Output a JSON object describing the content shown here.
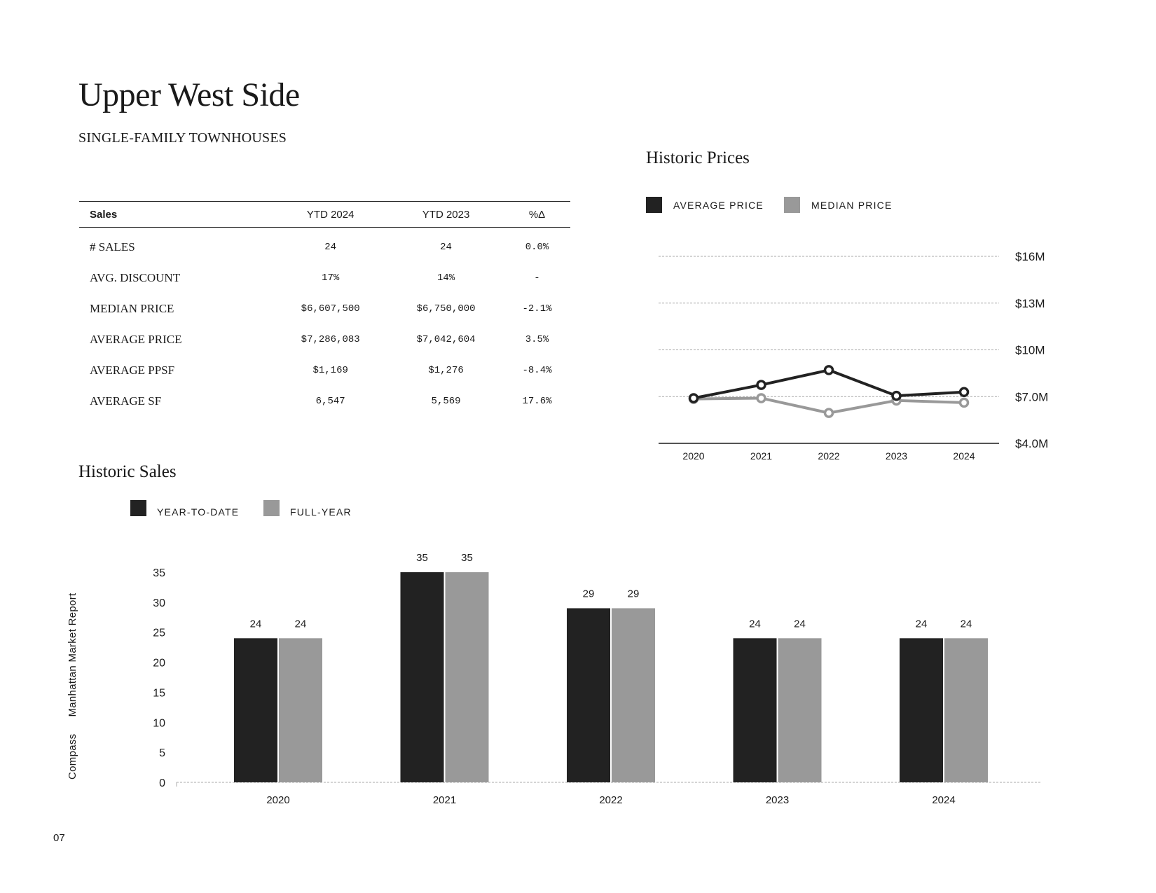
{
  "header": {
    "title": "Upper West Side",
    "subtitle": "SINGLE-FAMILY TOWNHOUSES"
  },
  "sales_table": {
    "columns": [
      "Sales",
      "YTD 2024",
      "YTD 2023",
      "%Δ"
    ],
    "rows": [
      {
        "label": "# SALES",
        "ytd2024": "24",
        "ytd2023": "24",
        "change": "0.0%"
      },
      {
        "label": "AVG. DISCOUNT",
        "ytd2024": "17%",
        "ytd2023": "14%",
        "change": "-"
      },
      {
        "label": "MEDIAN PRICE",
        "ytd2024": "$6,607,500",
        "ytd2023": "$6,750,000",
        "change": "-2.1%"
      },
      {
        "label": "AVERAGE PRICE",
        "ytd2024": "$7,286,083",
        "ytd2023": "$7,042,604",
        "change": "3.5%"
      },
      {
        "label": "AVERAGE PPSF",
        "ytd2024": "$1,169",
        "ytd2023": "$1,276",
        "change": "-8.4%"
      },
      {
        "label": "AVERAGE SF",
        "ytd2024": "6,547",
        "ytd2023": "5,569",
        "change": "17.6%"
      }
    ]
  },
  "colors": {
    "dark": "#222222",
    "gray": "#999999",
    "grid": "#aaaaaa"
  },
  "chart_data": [
    {
      "type": "line",
      "title": "Historic Prices",
      "x": [
        "2020",
        "2021",
        "2022",
        "2023",
        "2024"
      ],
      "series": [
        {
          "name": "AVERAGE PRICE",
          "values": [
            6.9,
            7.75,
            8.7,
            7.05,
            7.29
          ]
        },
        {
          "name": "MEDIAN PRICE",
          "values": [
            6.85,
            6.9,
            5.95,
            6.75,
            6.61
          ]
        }
      ],
      "yticks": [
        4.0,
        7.0,
        10,
        13,
        16
      ],
      "ytick_labels": [
        "$4.0M",
        "$7.0M",
        "$10M",
        "$13M",
        "$16M"
      ],
      "ylim": [
        4,
        16
      ],
      "legend": "top-left",
      "grid": true
    },
    {
      "type": "bar",
      "title": "Historic Sales",
      "categories": [
        "2020",
        "2021",
        "2022",
        "2023",
        "2024"
      ],
      "series": [
        {
          "name": "YEAR-TO-DATE",
          "values": [
            24,
            35,
            29,
            24,
            24
          ]
        },
        {
          "name": "FULL-YEAR",
          "values": [
            24,
            35,
            29,
            24,
            24
          ]
        }
      ],
      "yticks": [
        0,
        5,
        10,
        15,
        20,
        25,
        30,
        35
      ],
      "ylim": [
        0,
        35
      ],
      "legend": "top-left",
      "data_labels": true
    }
  ],
  "footer": {
    "side_brand": "Compass",
    "side_report": "Manhattan Market Report",
    "page_number": "07"
  }
}
